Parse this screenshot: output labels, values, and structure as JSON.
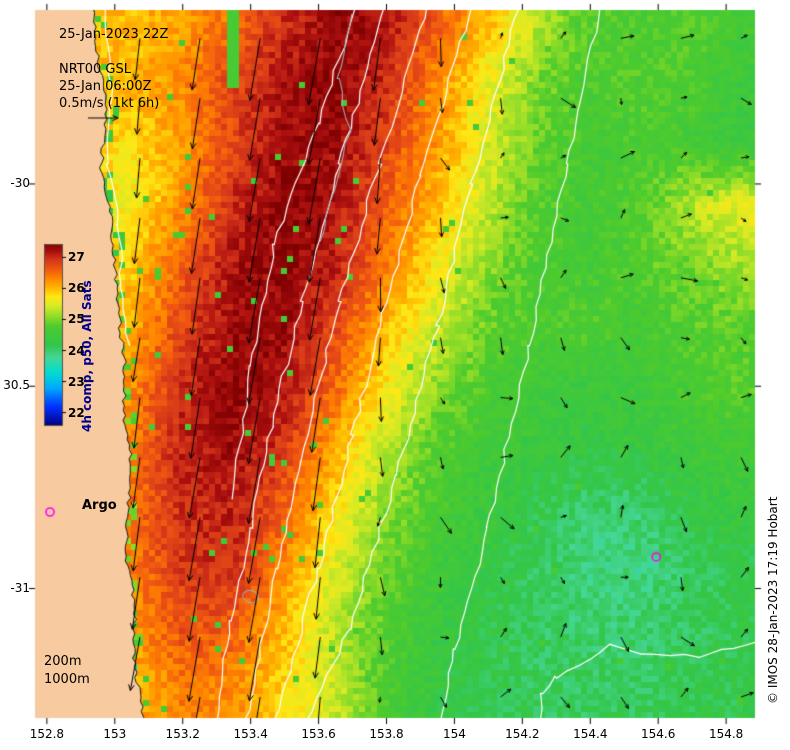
{
  "header": {
    "timestamp": "25-Jan-2023 22Z",
    "product_name": "NRT00 GSL",
    "product_time": "25-Jan 06:00Z",
    "vector_scale": "0.5m/s (1kt 6h)"
  },
  "colorbar": {
    "label": "4h comp, p50, All Sats",
    "ticks": [
      27,
      26,
      25,
      24,
      23,
      22
    ],
    "value_min": 21.6,
    "value_max": 27.4
  },
  "legend": {
    "argo": "Argo",
    "contour_200m": "200m",
    "contour_1000m": "1000m"
  },
  "axes": {
    "x_tick_labels": [
      "152.8",
      "153",
      "153.2",
      "153.4",
      "153.6",
      "153.8",
      "154",
      "154.2",
      "154.4",
      "154.6",
      "154.8"
    ],
    "x_tick_values": [
      152.8,
      153,
      153.2,
      153.4,
      153.6,
      153.8,
      154,
      154.2,
      154.4,
      154.6,
      154.8
    ],
    "y_tick_labels": [
      "-30",
      "30.5",
      "-31"
    ],
    "y_tick_values": [
      -30,
      -30.5,
      -31
    ]
  },
  "credit": "© IMOS 28-Jan-2023 17:19 Hobart",
  "colors": {
    "land": "#f8caa0",
    "coastline": "#1a1a1a",
    "contour_white": "#ffffff",
    "contour_gray": "#a8a8a8",
    "argo_marker": "#ff00ff",
    "arrow": "#000000",
    "colormap_stops": [
      [
        21.6,
        "#000085"
      ],
      [
        22.2,
        "#0030ff"
      ],
      [
        22.8,
        "#00a8ff"
      ],
      [
        23.3,
        "#00ddcf"
      ],
      [
        23.8,
        "#45d695"
      ],
      [
        24.2,
        "#33c649"
      ],
      [
        24.8,
        "#4ecb2d"
      ],
      [
        25.1,
        "#8edc28"
      ],
      [
        25.45,
        "#d7ea25"
      ],
      [
        25.75,
        "#ffe714"
      ],
      [
        26.05,
        "#ffb300"
      ],
      [
        26.35,
        "#ff8400"
      ],
      [
        26.65,
        "#ef5612"
      ],
      [
        26.95,
        "#d33519"
      ],
      [
        27.2,
        "#ab0f0f"
      ],
      [
        27.5,
        "#7d0000"
      ]
    ]
  },
  "chart_data": {
    "type": "heatmap",
    "units": "degC",
    "lon_range": [
      152.765,
      154.885
    ],
    "lat_range": [
      -31.32,
      -29.57
    ],
    "sst_grid": {
      "lons": [
        152.9,
        153.05,
        153.2,
        153.35,
        153.5,
        153.65,
        153.8,
        153.95,
        154.1,
        154.25,
        154.4,
        154.55,
        154.7,
        154.85
      ],
      "lats": [
        -29.6,
        -29.75,
        -29.9,
        -30.05,
        -30.2,
        -30.35,
        -30.5,
        -30.65,
        -30.8,
        -30.95,
        -31.1,
        -31.25
      ],
      "values": [
        [
          26.0,
          26.0,
          26.2,
          26.5,
          27.0,
          27.35,
          27.2,
          26.6,
          26.0,
          25.3,
          24.8,
          24.7,
          24.8,
          24.6
        ],
        [
          26.0,
          26.0,
          26.3,
          26.8,
          27.2,
          27.4,
          27.0,
          26.3,
          25.6,
          25.0,
          24.7,
          24.8,
          24.7,
          24.5
        ],
        [
          25.9,
          25.8,
          26.2,
          26.8,
          27.3,
          27.3,
          26.8,
          26.2,
          25.5,
          24.9,
          24.6,
          24.7,
          24.6,
          24.4
        ],
        [
          25.8,
          25.6,
          26.3,
          27.0,
          27.4,
          27.2,
          26.6,
          26.0,
          25.3,
          24.8,
          24.6,
          24.8,
          25.3,
          25.6
        ],
        [
          25.9,
          25.9,
          26.6,
          27.2,
          27.4,
          27.1,
          26.4,
          25.7,
          25.1,
          24.7,
          24.6,
          24.8,
          25.0,
          25.2
        ],
        [
          26.0,
          26.1,
          26.8,
          27.3,
          27.3,
          26.8,
          26.0,
          25.4,
          24.9,
          24.7,
          24.8,
          24.6,
          24.8,
          24.9
        ],
        [
          26.1,
          26.3,
          27.0,
          27.4,
          27.2,
          26.5,
          25.7,
          25.1,
          24.7,
          24.5,
          24.4,
          24.5,
          24.7,
          24.8
        ],
        [
          26.2,
          26.4,
          27.1,
          27.3,
          26.9,
          26.1,
          25.3,
          24.8,
          24.5,
          24.4,
          24.3,
          24.4,
          24.5,
          24.6
        ],
        [
          26.3,
          26.5,
          27.0,
          27.1,
          26.6,
          25.8,
          25.1,
          24.7,
          24.4,
          24.2,
          24.0,
          24.0,
          24.3,
          24.4
        ],
        [
          26.2,
          26.4,
          26.9,
          27.0,
          26.3,
          25.5,
          24.9,
          24.5,
          24.3,
          24.1,
          23.9,
          23.9,
          24.1,
          24.2
        ],
        [
          26.0,
          26.2,
          26.7,
          26.6,
          26.0,
          25.3,
          24.8,
          24.4,
          24.2,
          24.1,
          24.0,
          24.0,
          24.1,
          24.2
        ],
        [
          25.8,
          26.0,
          26.4,
          26.3,
          25.8,
          25.4,
          24.7,
          24.3,
          24.2,
          24.1,
          24.1,
          24.1,
          24.2,
          24.2
        ]
      ]
    },
    "coastline": [
      [
        -29.55,
        152.935
      ],
      [
        -29.7,
        152.95
      ],
      [
        -29.8,
        152.978
      ],
      [
        -29.88,
        152.966
      ],
      [
        -29.97,
        152.96
      ],
      [
        -30.08,
        152.988
      ],
      [
        -30.2,
        153.0
      ],
      [
        -30.33,
        153.012
      ],
      [
        -30.45,
        153.03
      ],
      [
        -30.56,
        153.026
      ],
      [
        -30.68,
        153.046
      ],
      [
        -30.8,
        153.04
      ],
      [
        -30.92,
        153.034
      ],
      [
        -31.05,
        153.06
      ],
      [
        -31.17,
        153.054
      ],
      [
        -31.28,
        153.076
      ],
      [
        -31.36,
        153.09
      ]
    ],
    "contours_white": [
      [
        [
          152.97,
          -29.56
        ],
        [
          152.99,
          -29.8
        ],
        [
          152.98,
          -29.95
        ],
        [
          153.01,
          -30.1
        ],
        [
          153.02,
          -30.25
        ],
        [
          153.04,
          -30.4
        ]
      ],
      [
        [
          153.71,
          -29.56
        ],
        [
          153.6,
          -29.85
        ],
        [
          153.47,
          -30.15
        ],
        [
          153.4,
          -30.45
        ],
        [
          153.345,
          -30.78
        ]
      ],
      [
        [
          153.8,
          -29.56
        ],
        [
          153.66,
          -29.95
        ],
        [
          153.55,
          -30.29
        ],
        [
          153.46,
          -30.6
        ],
        [
          153.4,
          -30.85
        ],
        [
          153.34,
          -31.08
        ],
        [
          153.295,
          -31.33
        ]
      ],
      [
        [
          153.92,
          -29.56
        ],
        [
          153.78,
          -29.95
        ],
        [
          153.66,
          -30.29
        ],
        [
          153.565,
          -30.62
        ],
        [
          153.475,
          -30.95
        ],
        [
          153.385,
          -31.33
        ]
      ],
      [
        [
          154.05,
          -29.56
        ],
        [
          153.9,
          -29.98
        ],
        [
          153.8,
          -30.29
        ],
        [
          153.7,
          -30.62
        ],
        [
          153.6,
          -30.95
        ],
        [
          153.47,
          -31.33
        ]
      ],
      [
        [
          154.19,
          -29.56
        ],
        [
          154.05,
          -30.0
        ],
        [
          153.95,
          -30.35
        ],
        [
          153.83,
          -30.72
        ],
        [
          153.69,
          -31.1
        ],
        [
          153.56,
          -31.33
        ]
      ],
      [
        [
          154.43,
          -29.56
        ],
        [
          154.33,
          -29.95
        ],
        [
          154.22,
          -30.4
        ],
        [
          154.1,
          -30.85
        ],
        [
          154.0,
          -31.15
        ],
        [
          153.96,
          -31.33
        ]
      ],
      [
        [
          154.89,
          -31.13
        ],
        [
          154.72,
          -31.17
        ],
        [
          154.55,
          -31.16
        ],
        [
          154.46,
          -31.14
        ],
        [
          154.3,
          -31.22
        ],
        [
          154.26,
          -31.26
        ],
        [
          154.25,
          -31.33
        ]
      ]
    ],
    "contours_gray": [
      [
        [
          153.7,
          -29.58
        ],
        [
          153.66,
          -29.74
        ],
        [
          153.69,
          -29.87
        ],
        [
          153.65,
          -30.02
        ],
        [
          153.6,
          -30.14
        ]
      ]
    ],
    "gray_loop": {
      "lon": 153.4,
      "lat": -31.02
    },
    "cold_speckles": [
      {
        "lon0": 153.33,
        "lon1": 153.36,
        "lat0": -29.76,
        "lat1": -29.57,
        "t": 24.7
      }
    ],
    "argo_floats": [
      {
        "lon": 154.594,
        "lat": -30.922
      }
    ],
    "current_field": {
      "jet_center_lon_at_lat0": 153.63,
      "jet_lat0": -29.6,
      "jet_slope_lon_per_lat": 0.176,
      "jet_speed_ms": 1.2,
      "jet_width_west_deg": 0.7,
      "jet_width_east_deg": 0.33,
      "background_speed_ms": [
        0.1,
        0.32
      ],
      "reference_speed_ms": 0.5,
      "arrow_grid_lon_step": 0.177,
      "arrow_grid_lat_step": 0.148
    }
  }
}
